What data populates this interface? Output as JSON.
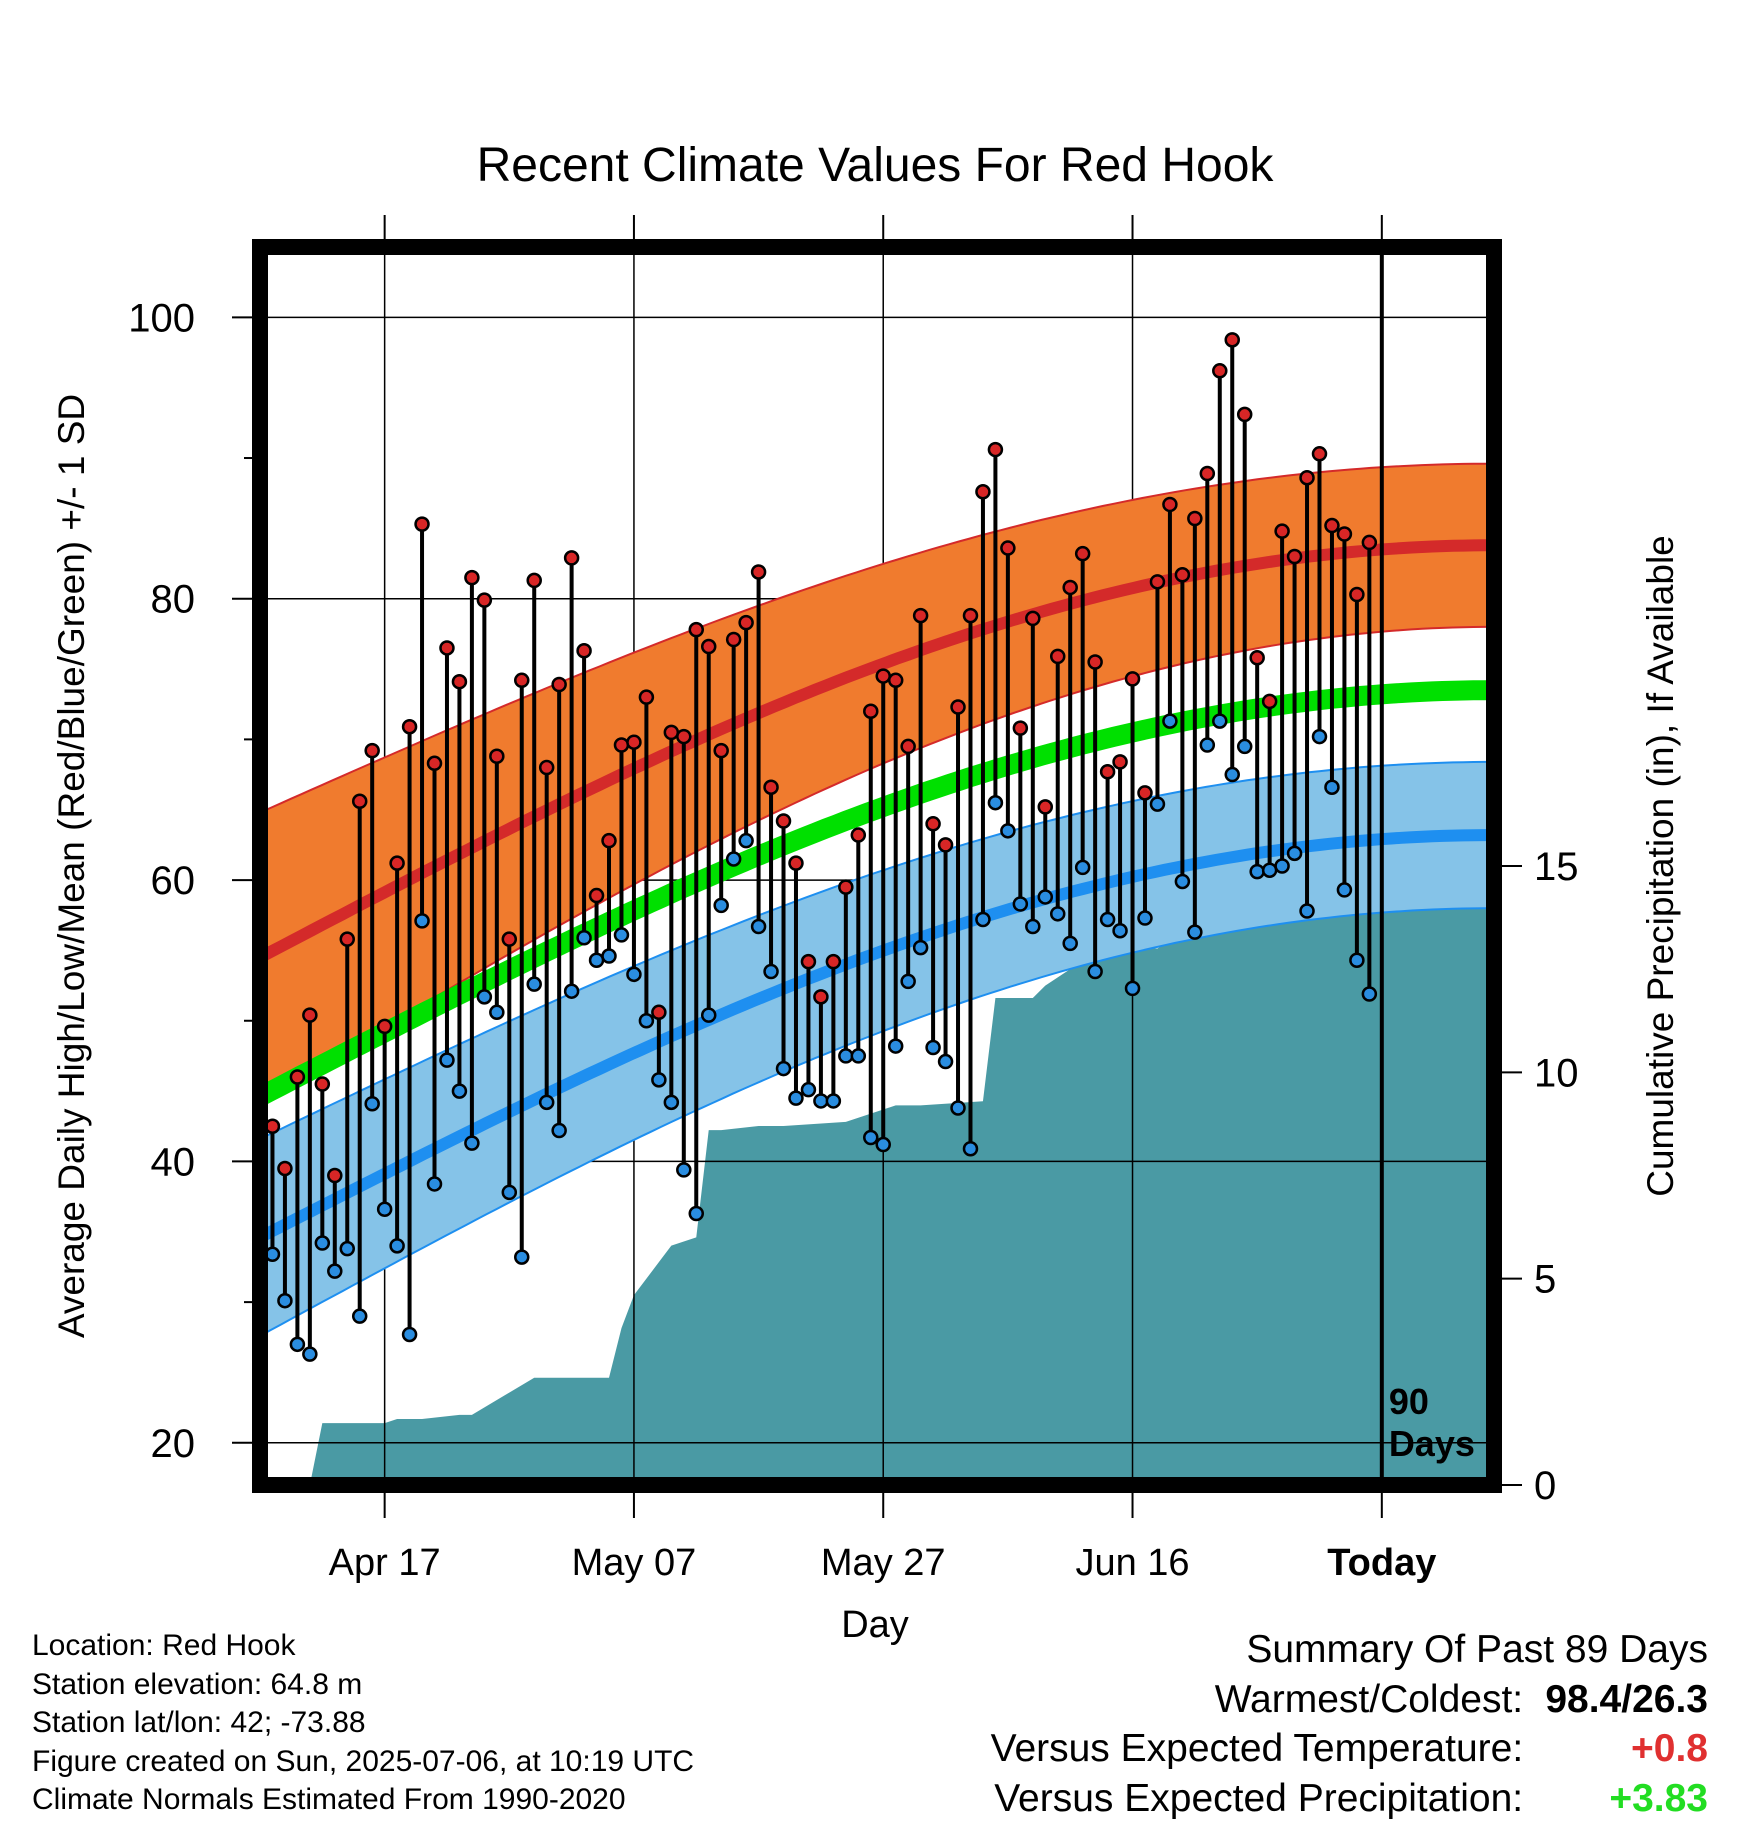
{
  "chart_data": {
    "type": "line",
    "title": "Recent Climate Values For Red Hook",
    "xlabel": "Day",
    "ylabel": "Average Daily High/Low/Mean (Red/Blue/Green) +/- 1 SD",
    "y2label": "Cumulative Precipitation (in), If Available",
    "x_tick_labels": [
      "Apr 17",
      "May 07",
      "May 27",
      "Jun 16",
      "Today"
    ],
    "ylim": [
      17,
      105
    ],
    "yticks": [
      20,
      40,
      60,
      80,
      100
    ],
    "y2lim": [
      0,
      30
    ],
    "y2ticks": [
      0,
      5,
      10,
      15
    ],
    "x_range_days": [
      -90,
      9
    ],
    "x_tick_days": [
      -80,
      -60,
      -40,
      -20,
      0
    ],
    "today_label": "90\nDays",
    "colors": {
      "high_band": "#f07b2e",
      "high_mean": "#d42a2a",
      "low_band": "#85c3e8",
      "low_mean": "#1e8ff0",
      "mean": "#00e000",
      "precip": "#4a9aa4",
      "high_marker": "#d82626",
      "low_marker": "#2a8de0"
    },
    "normals": {
      "high_mean": {
        "start": 54.5,
        "end": 83.8
      },
      "high_sd": {
        "start": 10.3,
        "end": 5.8
      },
      "low_mean": {
        "start": 34.6,
        "end": 63.2
      },
      "low_sd": {
        "start": 7.0,
        "end": 5.2
      },
      "mean": {
        "start": 44.6,
        "end": 73.5
      }
    },
    "series": [
      {
        "name": "High",
        "values": [
          42.5,
          39.5,
          46.0,
          50.4,
          45.5,
          39.0,
          55.8,
          65.6,
          69.2,
          49.6,
          61.2,
          70.9,
          85.3,
          68.3,
          76.5,
          74.1,
          81.5,
          79.9,
          68.8,
          55.8,
          74.2,
          81.3,
          68.0,
          73.9,
          82.9,
          76.3,
          58.9,
          62.8,
          69.6,
          69.8,
          73.0,
          50.6,
          70.5,
          70.2,
          77.8,
          76.6,
          69.2,
          77.1,
          78.3,
          81.9,
          66.6,
          64.2,
          61.2,
          54.2,
          51.7,
          54.2,
          59.5,
          63.2,
          72.0,
          74.5,
          74.2,
          69.5,
          78.8,
          64.0,
          62.5,
          72.3,
          78.8,
          87.6,
          90.6,
          83.6,
          70.8,
          78.6,
          65.2,
          75.9,
          80.8,
          83.2,
          75.5,
          67.7,
          68.4,
          74.3,
          66.2,
          81.2,
          86.7,
          81.7,
          85.7,
          88.9,
          96.2,
          98.4,
          93.1,
          75.8,
          72.7,
          84.8,
          83.0,
          88.6,
          90.3,
          85.2,
          84.6,
          80.3,
          84.0
        ]
      },
      {
        "name": "Low",
        "values": [
          33.4,
          30.1,
          27.0,
          26.3,
          34.2,
          32.2,
          33.8,
          29.0,
          44.1,
          36.6,
          34.0,
          27.7,
          57.1,
          38.4,
          47.2,
          45.0,
          41.3,
          51.7,
          50.6,
          37.8,
          33.2,
          52.6,
          44.2,
          42.2,
          52.1,
          55.9,
          54.3,
          54.6,
          56.1,
          53.3,
          50.0,
          45.8,
          44.2,
          39.4,
          36.3,
          50.4,
          58.2,
          61.5,
          62.8,
          56.7,
          53.5,
          46.6,
          44.5,
          45.1,
          44.3,
          44.3,
          47.5,
          47.5,
          41.7,
          41.2,
          48.2,
          52.8,
          55.2,
          48.1,
          47.1,
          43.8,
          40.9,
          57.2,
          65.5,
          63.5,
          58.3,
          56.7,
          58.8,
          57.6,
          55.5,
          60.9,
          53.5,
          57.2,
          56.4,
          52.3,
          57.3,
          65.4,
          71.3,
          59.9,
          56.3,
          69.6,
          71.3,
          67.5,
          69.5,
          60.6,
          60.7,
          61.0,
          61.9,
          57.8,
          70.2,
          66.6,
          59.3,
          54.3,
          51.9
        ]
      },
      {
        "name": "Cumulative Precipitation",
        "x": [
          -89,
          -86,
          -85,
          -80,
          -79,
          -77,
          -74,
          -73,
          -68,
          -67,
          -62,
          -61,
          -60,
          -58,
          -57,
          -55,
          -54,
          -53,
          -50,
          -48,
          -43,
          -41,
          -39,
          -37,
          -32,
          -31,
          -28,
          -27,
          -26,
          -25,
          -24,
          -23,
          -21,
          -18,
          -17,
          -14,
          -11,
          -10,
          -8,
          -6,
          -3,
          -2,
          -1,
          9
        ],
        "values": [
          0,
          0,
          1.5,
          1.5,
          1.6,
          1.6,
          1.7,
          1.7,
          2.6,
          2.6,
          2.6,
          3.8,
          4.6,
          5.4,
          5.8,
          6.0,
          8.6,
          8.6,
          8.7,
          8.7,
          8.8,
          9.0,
          9.2,
          9.2,
          9.3,
          11.8,
          11.8,
          12.1,
          12.3,
          12.5,
          12.7,
          12.9,
          13.0,
          13.0,
          13.2,
          14.0,
          14.2,
          14.2,
          14.3,
          14.3,
          14.3,
          15.1,
          15.5,
          15.5
        ]
      }
    ]
  },
  "footer": {
    "location": "Location: Red Hook",
    "elevation": "Station elevation: 64.8 m",
    "latlon": "Station lat/lon: 42; -73.88",
    "created": "Figure created on Sun, 2025-07-06, at 10:19 UTC",
    "normals": "Climate Normals Estimated From 1990-2020"
  },
  "summary": {
    "title": "Summary Of Past 89 Days",
    "warmest_coldest_label": "Warmest/Coldest:",
    "warmest_coldest_value": "98.4/26.3",
    "temp_label": "Versus Expected Temperature:",
    "temp_value": "+0.8",
    "temp_color": "#e03030",
    "precip_label": "Versus Expected Precipitation:",
    "precip_value": "+3.83",
    "precip_color": "#22dd22"
  }
}
